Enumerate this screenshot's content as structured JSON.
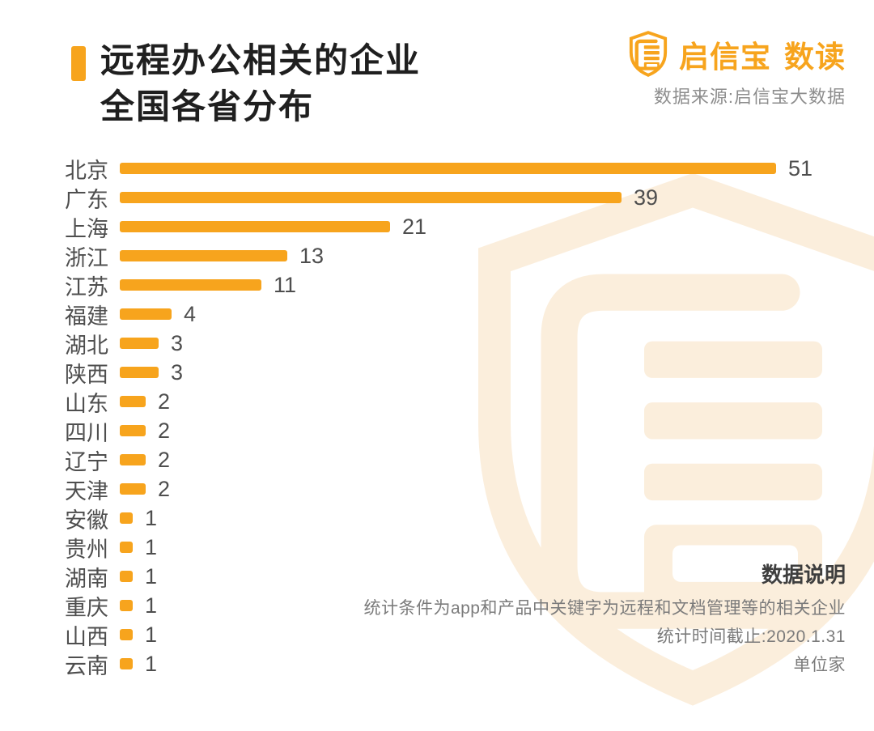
{
  "canvas": {
    "bg": "#ffffff",
    "accent": "#f7a41d",
    "watermark_color": "#fbeedc"
  },
  "header": {
    "title_line1": "远程办公相关的企业",
    "title_line2": "全国各省分布",
    "brand_name": "启信宝",
    "brand_suffix": "数读",
    "source": "数据来源:启信宝大数据"
  },
  "chart_data": {
    "type": "bar",
    "orientation": "horizontal",
    "title": "远程办公相关的企业全国各省分布",
    "unit": "家",
    "xlim": [
      0,
      51
    ],
    "grid": false,
    "legend": false,
    "bar_color": "#f7a41d",
    "categories": [
      "北京",
      "广东",
      "上海",
      "浙江",
      "江苏",
      "福建",
      "湖北",
      "陕西",
      "山东",
      "四川",
      "辽宁",
      "天津",
      "安徽",
      "贵州",
      "湖南",
      "重庆",
      "山西",
      "云南"
    ],
    "values": [
      51,
      39,
      21,
      13,
      11,
      4,
      3,
      3,
      2,
      2,
      2,
      2,
      1,
      1,
      1,
      1,
      1,
      1
    ]
  },
  "footer": {
    "heading": "数据说明",
    "condition": "统计条件为app和产品中关键字为远程和文档管理等的相关企业",
    "cutoff": "统计时间截止:2020.1.31",
    "unit_note": "单位家"
  }
}
